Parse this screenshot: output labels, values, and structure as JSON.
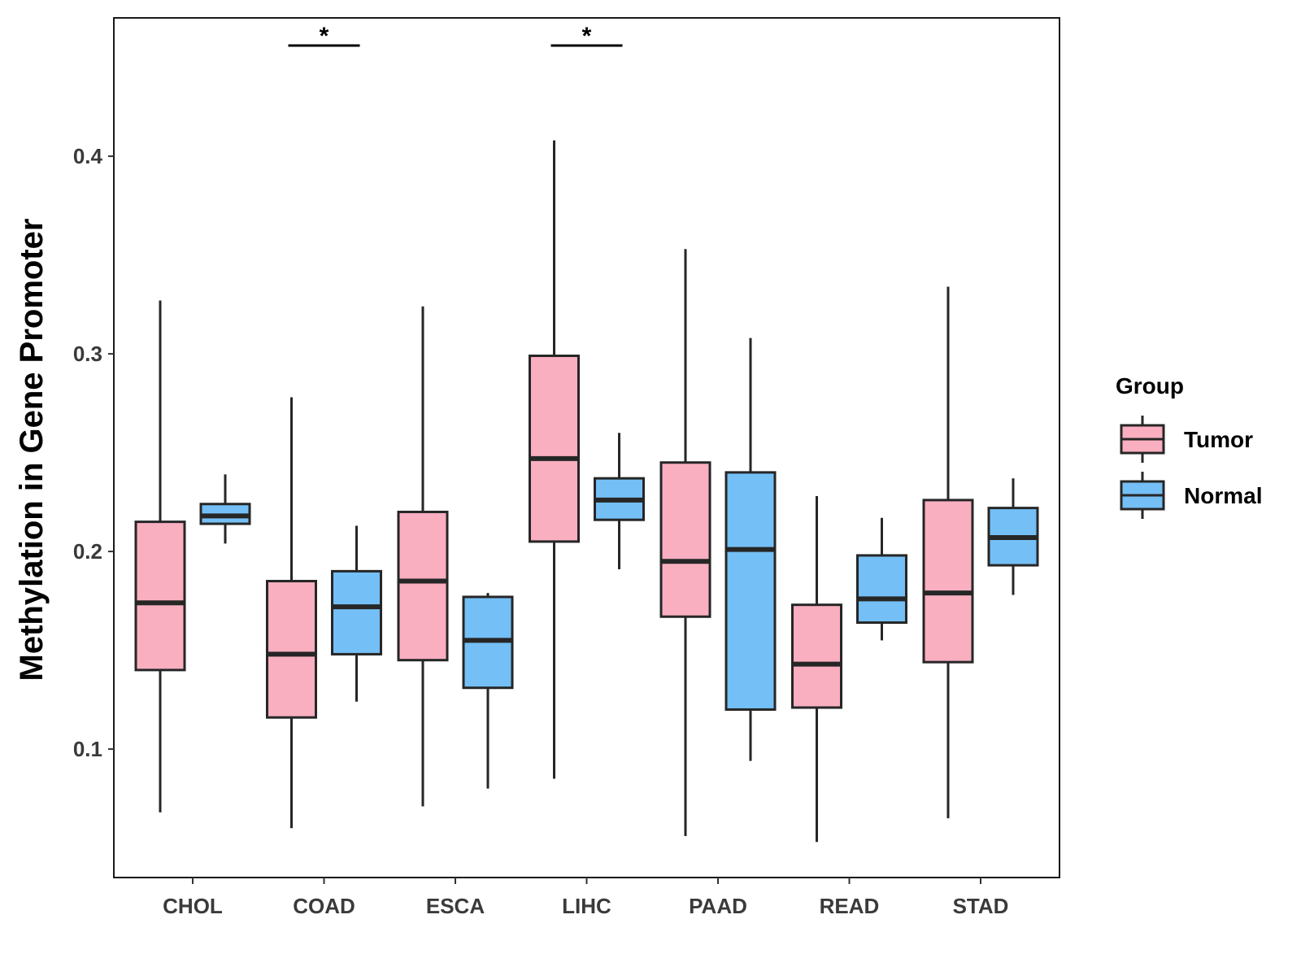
{
  "chart_data": {
    "type": "boxplot",
    "title": "",
    "xlabel": "",
    "ylabel": "Methylation in Gene Promoter",
    "ylim": [
      0.035,
      0.47
    ],
    "yticks": [
      "0.1",
      "0.2",
      "0.3",
      "0.4"
    ],
    "categories": [
      "CHOL",
      "COAD",
      "ESCA",
      "LIHC",
      "PAAD",
      "READ",
      "STAD"
    ],
    "legend": {
      "title": "Group",
      "position": "right",
      "entries": [
        "Tumor",
        "Normal"
      ]
    },
    "colors": {
      "Tumor": "#f9afc0",
      "Normal": "#74bff5",
      "stroke": "#262626"
    },
    "series": [
      {
        "name": "Tumor",
        "boxes": [
          {
            "category": "CHOL",
            "whisker_low": 0.068,
            "q1": 0.14,
            "median": 0.174,
            "q3": 0.215,
            "whisker_high": 0.327
          },
          {
            "category": "COAD",
            "whisker_low": 0.06,
            "q1": 0.116,
            "median": 0.148,
            "q3": 0.185,
            "whisker_high": 0.278
          },
          {
            "category": "ESCA",
            "whisker_low": 0.071,
            "q1": 0.145,
            "median": 0.185,
            "q3": 0.22,
            "whisker_high": 0.324
          },
          {
            "category": "LIHC",
            "whisker_low": 0.085,
            "q1": 0.205,
            "median": 0.247,
            "q3": 0.299,
            "whisker_high": 0.408
          },
          {
            "category": "PAAD",
            "whisker_low": 0.056,
            "q1": 0.167,
            "median": 0.195,
            "q3": 0.245,
            "whisker_high": 0.353
          },
          {
            "category": "READ",
            "whisker_low": 0.053,
            "q1": 0.121,
            "median": 0.143,
            "q3": 0.173,
            "whisker_high": 0.228
          },
          {
            "category": "STAD",
            "whisker_low": 0.065,
            "q1": 0.144,
            "median": 0.179,
            "q3": 0.226,
            "whisker_high": 0.334
          }
        ]
      },
      {
        "name": "Normal",
        "boxes": [
          {
            "category": "CHOL",
            "whisker_low": 0.204,
            "q1": 0.214,
            "median": 0.218,
            "q3": 0.224,
            "whisker_high": 0.239
          },
          {
            "category": "COAD",
            "whisker_low": 0.124,
            "q1": 0.148,
            "median": 0.172,
            "q3": 0.19,
            "whisker_high": 0.213
          },
          {
            "category": "ESCA",
            "whisker_low": 0.08,
            "q1": 0.131,
            "median": 0.155,
            "q3": 0.177,
            "whisker_high": 0.179
          },
          {
            "category": "LIHC",
            "whisker_low": 0.191,
            "q1": 0.216,
            "median": 0.226,
            "q3": 0.237,
            "whisker_high": 0.26
          },
          {
            "category": "PAAD",
            "whisker_low": 0.094,
            "q1": 0.12,
            "median": 0.201,
            "q3": 0.24,
            "whisker_high": 0.308
          },
          {
            "category": "READ",
            "whisker_low": 0.155,
            "q1": 0.164,
            "median": 0.176,
            "q3": 0.198,
            "whisker_high": 0.217
          },
          {
            "category": "STAD",
            "whisker_low": 0.178,
            "q1": 0.193,
            "median": 0.207,
            "q3": 0.222,
            "whisker_high": 0.237
          }
        ]
      }
    ],
    "annotations": [
      {
        "category": "COAD",
        "label": "*",
        "y": 0.456
      },
      {
        "category": "LIHC",
        "label": "*",
        "y": 0.456
      }
    ]
  }
}
